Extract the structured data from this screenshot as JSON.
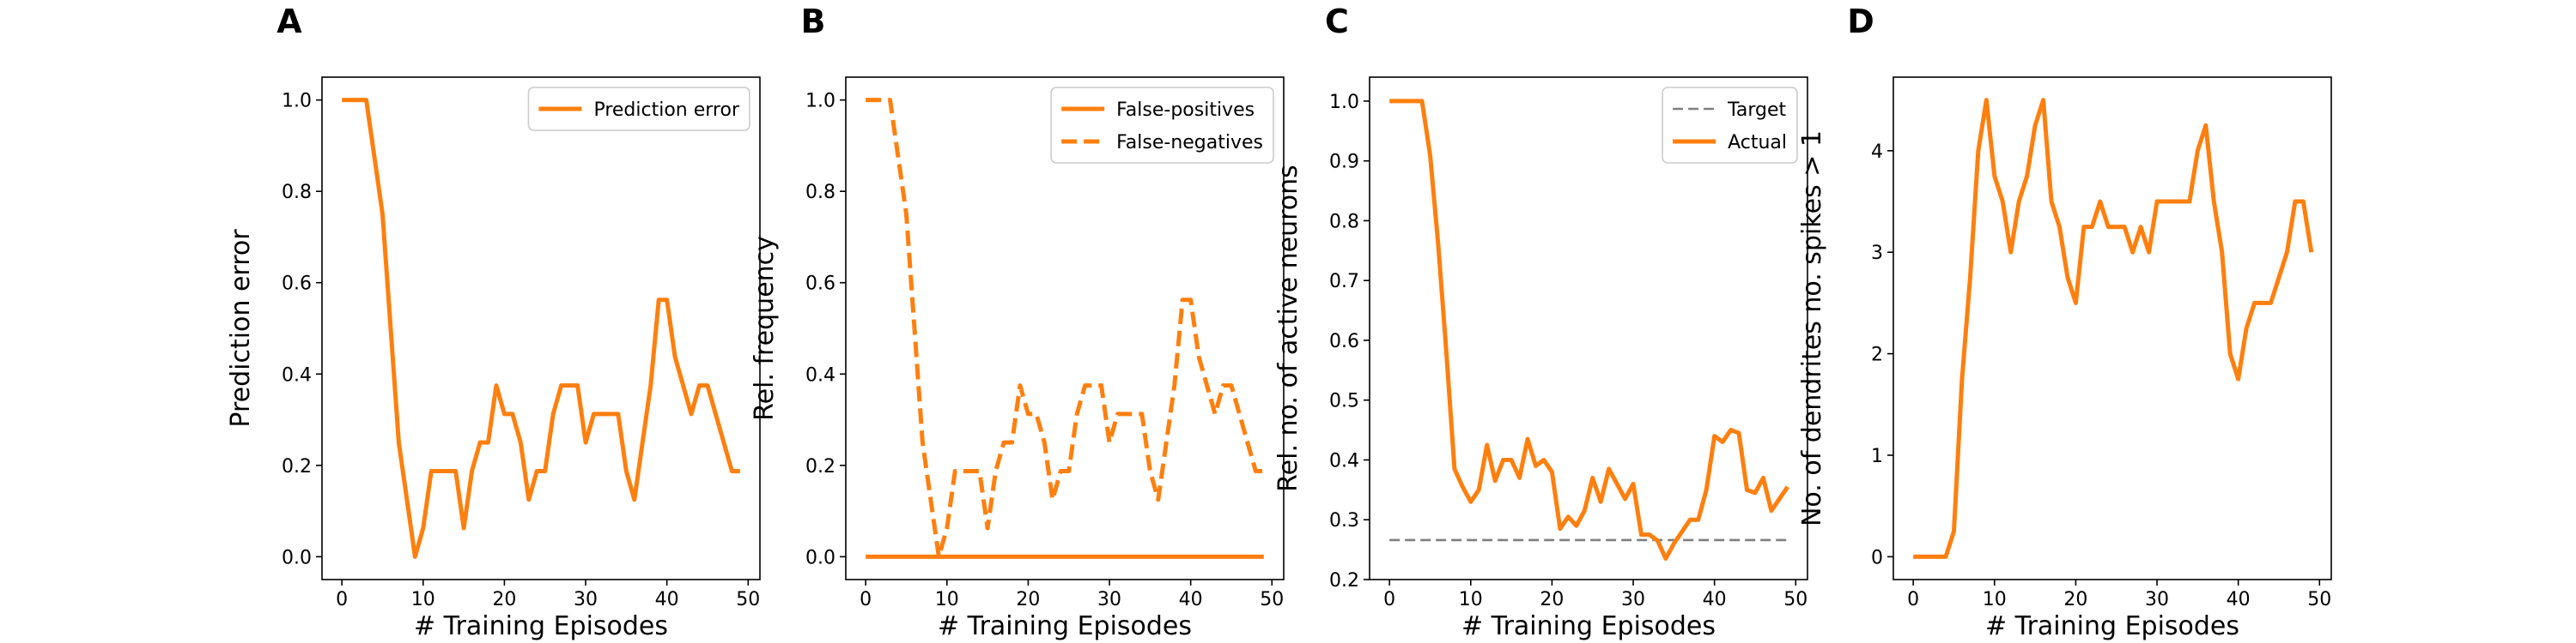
{
  "colors": {
    "series": "#ff7f0e",
    "target": "#7f7f7f",
    "axis": "#000000",
    "legend_frame": "#cccccc"
  },
  "chart_data": [
    {
      "letter": "A",
      "type": "line",
      "xlabel": "# Training Episodes",
      "ylabel": "Prediction error",
      "xlim": [
        -2.45,
        51.45
      ],
      "ylim": [
        -0.05,
        1.05
      ],
      "xticks": [
        0,
        10,
        20,
        30,
        40,
        50
      ],
      "xtick_labels": [
        "0",
        "10",
        "20",
        "30",
        "40",
        "50"
      ],
      "yticks": [
        0.0,
        0.2,
        0.4,
        0.6,
        0.8,
        1.0
      ],
      "ytick_labels": [
        "0.0",
        "0.2",
        "0.4",
        "0.6",
        "0.8",
        "1.0"
      ],
      "legend": "top-right",
      "grid": false,
      "series": [
        {
          "name": "Prediction error",
          "style": "solid",
          "x": [
            0,
            1,
            2,
            3,
            4,
            5,
            6,
            7,
            8,
            9,
            10,
            11,
            12,
            13,
            14,
            15,
            16,
            17,
            18,
            19,
            20,
            21,
            22,
            23,
            24,
            25,
            26,
            27,
            28,
            29,
            30,
            31,
            32,
            33,
            34,
            35,
            36,
            37,
            38,
            39,
            40,
            41,
            42,
            43,
            44,
            45,
            46,
            47,
            48,
            49
          ],
          "y": [
            1.0,
            1.0,
            1.0,
            1.0,
            0.875,
            0.75,
            0.5,
            0.25,
            0.125,
            0.0,
            0.0625,
            0.1875,
            0.1875,
            0.1875,
            0.1875,
            0.0625,
            0.1875,
            0.25,
            0.25,
            0.375,
            0.3125,
            0.3125,
            0.25,
            0.125,
            0.1875,
            0.1875,
            0.3125,
            0.375,
            0.375,
            0.375,
            0.25,
            0.3125,
            0.3125,
            0.3125,
            0.3125,
            0.1875,
            0.125,
            0.25,
            0.375,
            0.5625,
            0.5625,
            0.4375,
            0.375,
            0.3125,
            0.375,
            0.375,
            0.3125,
            0.25,
            0.1875,
            0.1875
          ]
        }
      ]
    },
    {
      "letter": "B",
      "type": "line",
      "xlabel": "# Training Episodes",
      "ylabel": "Rel. frequency",
      "xlim": [
        -2.45,
        51.45
      ],
      "ylim": [
        -0.05,
        1.05
      ],
      "xticks": [
        0,
        10,
        20,
        30,
        40,
        50
      ],
      "xtick_labels": [
        "0",
        "10",
        "20",
        "30",
        "40",
        "50"
      ],
      "yticks": [
        0.0,
        0.2,
        0.4,
        0.6,
        0.8,
        1.0
      ],
      "ytick_labels": [
        "0.0",
        "0.2",
        "0.4",
        "0.6",
        "0.8",
        "1.0"
      ],
      "legend": "top-right",
      "grid": false,
      "series": [
        {
          "name": "False-positives",
          "style": "solid",
          "x": [
            0,
            1,
            2,
            3,
            4,
            5,
            6,
            7,
            8,
            9,
            10,
            11,
            12,
            13,
            14,
            15,
            16,
            17,
            18,
            19,
            20,
            21,
            22,
            23,
            24,
            25,
            26,
            27,
            28,
            29,
            30,
            31,
            32,
            33,
            34,
            35,
            36,
            37,
            38,
            39,
            40,
            41,
            42,
            43,
            44,
            45,
            46,
            47,
            48,
            49
          ],
          "y": [
            0,
            0,
            0,
            0,
            0,
            0,
            0,
            0,
            0,
            0,
            0,
            0,
            0,
            0,
            0,
            0,
            0,
            0,
            0,
            0,
            0,
            0,
            0,
            0,
            0,
            0,
            0,
            0,
            0,
            0,
            0,
            0,
            0,
            0,
            0,
            0,
            0,
            0,
            0,
            0,
            0,
            0,
            0,
            0,
            0,
            0,
            0,
            0,
            0,
            0
          ]
        },
        {
          "name": "False-negatives",
          "style": "dashed",
          "x": [
            0,
            1,
            2,
            3,
            4,
            5,
            6,
            7,
            8,
            9,
            10,
            11,
            12,
            13,
            14,
            15,
            16,
            17,
            18,
            19,
            20,
            21,
            22,
            23,
            24,
            25,
            26,
            27,
            28,
            29,
            30,
            31,
            32,
            33,
            34,
            35,
            36,
            37,
            38,
            39,
            40,
            41,
            42,
            43,
            44,
            45,
            46,
            47,
            48,
            49
          ],
          "y": [
            1.0,
            1.0,
            1.0,
            1.0,
            0.875,
            0.75,
            0.5,
            0.25,
            0.125,
            0.0,
            0.0625,
            0.1875,
            0.1875,
            0.1875,
            0.1875,
            0.0625,
            0.1875,
            0.25,
            0.25,
            0.375,
            0.3125,
            0.3125,
            0.25,
            0.125,
            0.1875,
            0.1875,
            0.3125,
            0.375,
            0.375,
            0.375,
            0.25,
            0.3125,
            0.3125,
            0.3125,
            0.3125,
            0.1875,
            0.125,
            0.25,
            0.375,
            0.5625,
            0.5625,
            0.4375,
            0.375,
            0.3125,
            0.375,
            0.375,
            0.3125,
            0.25,
            0.1875,
            0.1875
          ]
        }
      ]
    },
    {
      "letter": "C",
      "type": "line",
      "xlabel": "# Training Episodes",
      "ylabel": "Rel. no. of active neurons",
      "xlim": [
        -2.45,
        51.45
      ],
      "ylim": [
        0.2,
        1.04
      ],
      "xticks": [
        0,
        10,
        20,
        30,
        40,
        50
      ],
      "xtick_labels": [
        "0",
        "10",
        "20",
        "30",
        "40",
        "50"
      ],
      "yticks": [
        0.2,
        0.3,
        0.4,
        0.5,
        0.6,
        0.7,
        0.8,
        0.9,
        1.0
      ],
      "ytick_labels": [
        "0.2",
        "0.3",
        "0.4",
        "0.5",
        "0.6",
        "0.7",
        "0.8",
        "0.9",
        "1.0"
      ],
      "legend": "top-right",
      "grid": false,
      "series": [
        {
          "name": "Target",
          "style": "target-dashed",
          "x": [
            0,
            49
          ],
          "y": [
            0.266,
            0.266
          ]
        },
        {
          "name": "Actual",
          "style": "solid",
          "x": [
            0,
            1,
            2,
            3,
            4,
            5,
            6,
            7,
            8,
            9,
            10,
            11,
            12,
            13,
            14,
            15,
            16,
            17,
            18,
            19,
            20,
            21,
            22,
            23,
            24,
            25,
            26,
            27,
            28,
            29,
            30,
            31,
            32,
            33,
            34,
            35,
            36,
            37,
            38,
            39,
            40,
            41,
            42,
            43,
            44,
            45,
            46,
            47,
            48,
            49
          ],
          "y": [
            1.0,
            1.0,
            1.0,
            1.0,
            1.0,
            0.91,
            0.76,
            0.58,
            0.385,
            0.355,
            0.33,
            0.35,
            0.425,
            0.365,
            0.4,
            0.4,
            0.37,
            0.435,
            0.39,
            0.4,
            0.38,
            0.285,
            0.305,
            0.29,
            0.315,
            0.37,
            0.33,
            0.385,
            0.36,
            0.335,
            0.36,
            0.275,
            0.275,
            0.265,
            0.235,
            0.26,
            0.28,
            0.3,
            0.3,
            0.35,
            0.44,
            0.43,
            0.45,
            0.445,
            0.35,
            0.345,
            0.37,
            0.315,
            0.335,
            0.355
          ]
        }
      ]
    },
    {
      "letter": "D",
      "type": "line",
      "xlabel": "# Training Episodes",
      "ylabel": "No. of dendrites no. spikes > 1",
      "xlim": [
        -2.45,
        51.45
      ],
      "ylim": [
        -0.225,
        4.725
      ],
      "xticks": [
        0,
        10,
        20,
        30,
        40,
        50
      ],
      "xtick_labels": [
        "0",
        "10",
        "20",
        "30",
        "40",
        "50"
      ],
      "yticks": [
        0,
        1,
        2,
        3,
        4
      ],
      "ytick_labels": [
        "0",
        "1",
        "2",
        "3",
        "4"
      ],
      "legend": "none",
      "grid": false,
      "series": [
        {
          "style": "solid",
          "x": [
            0,
            1,
            2,
            3,
            4,
            5,
            6,
            7,
            8,
            9,
            10,
            11,
            12,
            13,
            14,
            15,
            16,
            17,
            18,
            19,
            20,
            21,
            22,
            23,
            24,
            25,
            26,
            27,
            28,
            29,
            30,
            31,
            32,
            33,
            34,
            35,
            36,
            37,
            38,
            39,
            40,
            41,
            42,
            43,
            44,
            45,
            46,
            47,
            48,
            49
          ],
          "y": [
            0,
            0,
            0,
            0,
            0,
            0.25,
            1.75,
            2.75,
            4.0,
            4.5,
            3.75,
            3.5,
            3.0,
            3.5,
            3.75,
            4.25,
            4.5,
            3.5,
            3.25,
            2.75,
            2.5,
            3.25,
            3.25,
            3.5,
            3.25,
            3.25,
            3.25,
            3.0,
            3.25,
            3.0,
            3.5,
            3.5,
            3.5,
            3.5,
            3.5,
            4.0,
            4.25,
            3.5,
            3.0,
            2.0,
            1.75,
            2.25,
            2.5,
            2.5,
            2.5,
            2.75,
            3.0,
            3.5,
            3.5,
            3.0
          ]
        }
      ]
    }
  ]
}
